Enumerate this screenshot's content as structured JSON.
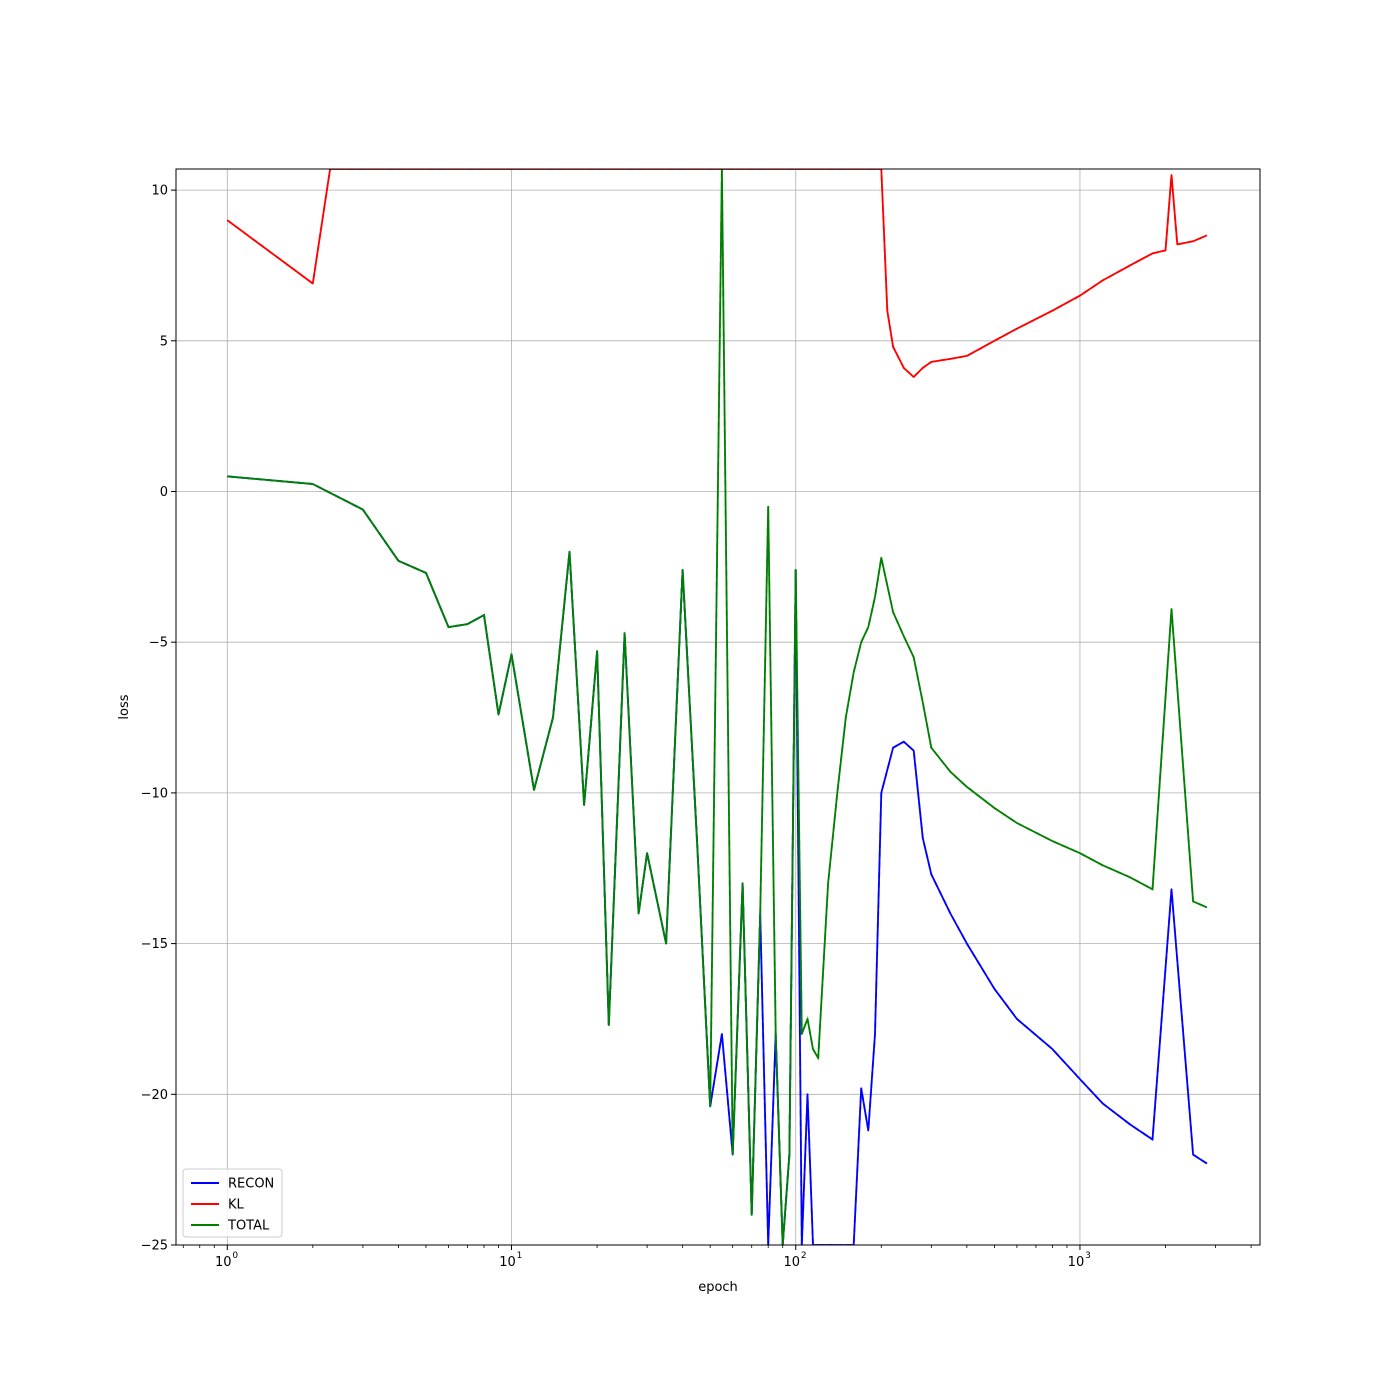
{
  "chart_data": {
    "type": "line",
    "xscale": "log",
    "xlabel": "epoch",
    "ylabel": "loss",
    "xlim": [
      0.66,
      4300
    ],
    "ylim": [
      -25,
      10.7
    ],
    "yticks": [
      10,
      5,
      0,
      -5,
      -10,
      -15,
      -20,
      -25
    ],
    "xticks": [
      {
        "base": "10",
        "exp": "0",
        "value": 1
      },
      {
        "base": "10",
        "exp": "1",
        "value": 10
      },
      {
        "base": "10",
        "exp": "2",
        "value": 100
      },
      {
        "base": "10",
        "exp": "3",
        "value": 1000
      }
    ],
    "grid": true,
    "legend": {
      "position": "lower-left"
    },
    "series": [
      {
        "name": "RECON",
        "color": "#0000ff",
        "x": [
          1,
          2,
          3,
          4,
          5,
          6,
          7,
          8,
          9,
          10,
          12,
          14,
          16,
          18,
          20,
          22,
          25,
          28,
          30,
          35,
          40,
          45,
          50,
          55,
          60,
          65,
          70,
          75,
          80,
          85,
          90,
          95,
          100,
          105,
          110,
          115,
          120,
          130,
          140,
          150,
          160,
          170,
          180,
          190,
          200,
          220,
          240,
          260,
          280,
          300,
          350,
          400,
          500,
          600,
          800,
          1000,
          1200,
          1500,
          1800,
          2100,
          2500,
          2800
        ],
        "y": [
          0.5,
          0.25,
          -0.6,
          -2.3,
          -2.7,
          -4.5,
          -4.4,
          -4.1,
          -7.4,
          -5.4,
          -9.9,
          -7.5,
          -2.0,
          -10.4,
          -5.3,
          -17.7,
          -4.7,
          -14.0,
          -12.0,
          -15.0,
          -2.6,
          -11.7,
          -20.4,
          -18.0,
          -22.0,
          -13.0,
          -24.0,
          -14.0,
          -25.0,
          -18.0,
          -25.0,
          -22.0,
          -2.6,
          -25.0,
          -20.0,
          -25.0,
          -25.0,
          -25.0,
          -25.0,
          -25.0,
          -25.0,
          -19.8,
          -21.2,
          -18.0,
          -10.0,
          -8.5,
          -8.3,
          -8.6,
          -11.5,
          -12.7,
          -14.0,
          -15.0,
          -16.5,
          -17.5,
          -18.5,
          -19.5,
          -20.3,
          -21.0,
          -21.5,
          -13.2,
          -22.0,
          -22.3
        ]
      },
      {
        "name": "KL",
        "color": "#ff0000",
        "x": [
          1,
          2,
          2.3,
          200,
          210,
          220,
          240,
          260,
          280,
          300,
          350,
          400,
          500,
          600,
          800,
          1000,
          1200,
          1500,
          1800,
          2000,
          2100,
          2200,
          2500,
          2800
        ],
        "y": [
          9.0,
          6.9,
          10.7,
          10.7,
          6.0,
          4.8,
          4.1,
          3.8,
          4.1,
          4.3,
          4.4,
          4.5,
          5.0,
          5.4,
          6.0,
          6.5,
          7.0,
          7.5,
          7.9,
          8.0,
          10.5,
          8.2,
          8.3,
          8.5
        ]
      },
      {
        "name": "TOTAL",
        "color": "#008000",
        "x": [
          1,
          2,
          3,
          4,
          5,
          6,
          7,
          8,
          9,
          10,
          12,
          14,
          16,
          18,
          20,
          22,
          25,
          28,
          30,
          35,
          40,
          45,
          50,
          55,
          60,
          65,
          70,
          75,
          80,
          85,
          90,
          95,
          100,
          105,
          110,
          115,
          120,
          130,
          140,
          150,
          160,
          170,
          180,
          190,
          200,
          220,
          240,
          260,
          280,
          300,
          350,
          400,
          500,
          600,
          800,
          1000,
          1200,
          1500,
          1800,
          2100,
          2500,
          2800
        ],
        "y": [
          0.5,
          0.25,
          -0.6,
          -2.3,
          -2.7,
          -4.5,
          -4.4,
          -4.1,
          -7.4,
          -5.4,
          -9.9,
          -7.5,
          -2.0,
          -10.4,
          -5.3,
          -17.7,
          -4.7,
          -14.0,
          -12.0,
          -15.0,
          -2.6,
          -11.7,
          -20.4,
          10.7,
          -22.0,
          -13.0,
          -24.0,
          -14.0,
          -0.5,
          -18.0,
          -25.0,
          -22.0,
          -2.6,
          -18.0,
          -17.5,
          -18.5,
          -18.8,
          -13.0,
          -10.0,
          -7.5,
          -6.0,
          -5.0,
          -4.5,
          -3.5,
          -2.2,
          -4.0,
          -4.8,
          -5.5,
          -7.0,
          -8.5,
          -9.3,
          -9.8,
          -10.5,
          -11.0,
          -11.6,
          -12.0,
          -12.4,
          -12.8,
          -13.2,
          -3.9,
          -13.6,
          -13.8
        ]
      }
    ]
  }
}
